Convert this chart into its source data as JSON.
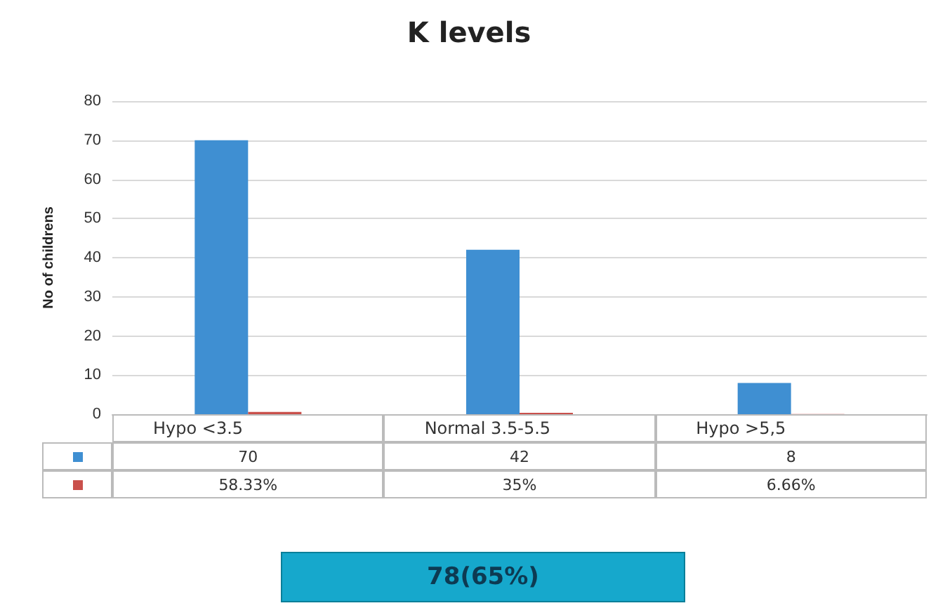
{
  "chart_data": {
    "type": "bar",
    "title": "K levels",
    "ylabel": "No of childrens",
    "categories": [
      "Hypo  <3.5",
      "Normal  3.5-5.5",
      "Hypo >5,5"
    ],
    "series": [
      {
        "color": "#3f8fd2",
        "values": [
          70,
          42,
          8
        ],
        "value_labels": [
          "70",
          "42",
          "8"
        ]
      },
      {
        "color": "#c9504b",
        "values": [
          0.5833,
          0.35,
          0.0666
        ],
        "value_labels": [
          "58.33%",
          "35%",
          "6.66%"
        ]
      }
    ],
    "ylim": [
      0,
      80
    ],
    "yticks": [
      0,
      10,
      20,
      30,
      40,
      50,
      60,
      70,
      80
    ],
    "grid": "y",
    "annotations": [
      "78(65%)"
    ]
  }
}
